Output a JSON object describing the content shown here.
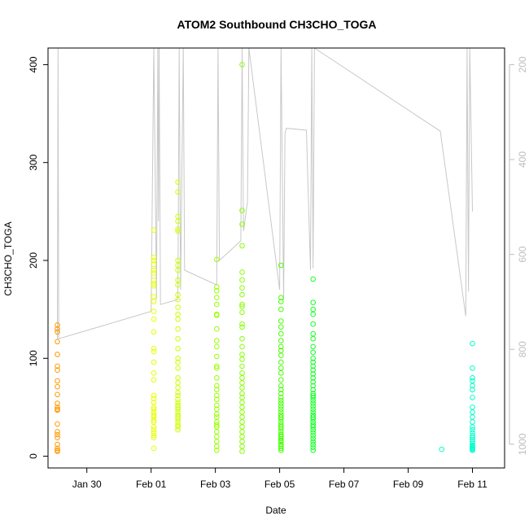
{
  "chart_data": {
    "type": "scatter",
    "title": "ATOM2 Southbound CH3CHO_TOGA",
    "xlabel": "Date",
    "ylabel": "CH3CHO_TOGA",
    "xlim": [
      "2017-01-28T19:00",
      "2017-02-12T00:00"
    ],
    "ylim": [
      -12,
      417
    ],
    "x_ticks": [
      {
        "date": "2017-01-30",
        "label": "Jan 30"
      },
      {
        "date": "2017-02-01",
        "label": "Feb 01"
      },
      {
        "date": "2017-02-03",
        "label": "Feb 03"
      },
      {
        "date": "2017-02-05",
        "label": "Feb 05"
      },
      {
        "date": "2017-02-07",
        "label": "Feb 07"
      },
      {
        "date": "2017-02-09",
        "label": "Feb 09"
      },
      {
        "date": "2017-02-11",
        "label": "Feb 11"
      }
    ],
    "y_ticks": [
      0,
      100,
      200,
      300,
      400
    ],
    "secondary_axis": {
      "side": "right",
      "color": "#bdbdbd",
      "reversed": true,
      "ylim": [
        1050,
        165
      ],
      "ticks": [
        200,
        400,
        600,
        800,
        1000
      ]
    },
    "point_color_scale": "time (orange to cyan)",
    "series": [
      {
        "color": "#ff9900",
        "x": [
          "2017-01-29T02:00",
          "2017-01-29T02:00",
          "2017-01-29T02:00",
          "2017-01-29T02:00",
          "2017-01-29T02:00",
          "2017-01-29T02:00",
          "2017-01-29T02:00",
          "2017-01-29T02:00",
          "2017-01-29T02:00",
          "2017-01-29T02:00",
          "2017-01-29T02:00",
          "2017-01-29T02:00",
          "2017-01-29T02:00",
          "2017-01-29T02:00",
          "2017-01-29T02:00",
          "2017-01-29T02:00",
          "2017-01-29T02:00",
          "2017-01-29T02:00",
          "2017-01-29T02:00",
          "2017-01-29T02:00",
          "2017-01-29T02:00",
          "2017-01-29T02:00"
        ],
        "y": [
          134,
          130,
          127,
          117,
          104,
          92,
          88,
          77,
          71,
          63,
          54,
          50,
          48,
          47,
          33,
          25,
          22,
          19,
          12,
          8,
          6,
          5
        ]
      },
      {
        "color": "#e6ff00",
        "x": [
          "2017-02-01T02:00",
          "2017-02-01T02:00",
          "2017-02-01T02:00",
          "2017-02-01T02:00",
          "2017-02-01T02:00",
          "2017-02-01T02:00",
          "2017-02-01T02:00",
          "2017-02-01T02:00",
          "2017-02-01T02:00",
          "2017-02-01T02:00",
          "2017-02-01T02:00",
          "2017-02-01T02:00",
          "2017-02-01T02:00",
          "2017-02-01T02:00",
          "2017-02-01T02:00",
          "2017-02-01T02:00",
          "2017-02-01T02:00",
          "2017-02-01T02:00",
          "2017-02-01T02:00",
          "2017-02-01T02:00",
          "2017-02-01T02:00",
          "2017-02-01T02:00",
          "2017-02-01T02:00",
          "2017-02-01T02:00",
          "2017-02-01T02:00",
          "2017-02-01T02:00",
          "2017-02-01T02:00",
          "2017-02-01T02:00",
          "2017-02-01T02:00",
          "2017-02-01T02:00",
          "2017-02-01T02:00",
          "2017-02-01T02:00",
          "2017-02-01T02:00",
          "2017-02-01T02:00",
          "2017-02-01T02:00"
        ],
        "y": [
          231,
          203,
          200,
          196,
          190,
          187,
          180,
          176,
          174,
          163,
          158,
          148,
          140,
          127,
          110,
          107,
          96,
          85,
          78,
          62,
          59,
          55,
          50,
          48,
          45,
          42,
          40,
          37,
          35,
          30,
          27,
          24,
          21,
          19,
          8
        ]
      },
      {
        "color": "#ccff00",
        "x": [
          "2017-02-01T20:00",
          "2017-02-01T20:00",
          "2017-02-01T20:00",
          "2017-02-01T20:00",
          "2017-02-01T20:00",
          "2017-02-01T20:00",
          "2017-02-01T20:00",
          "2017-02-01T20:00",
          "2017-02-01T20:00",
          "2017-02-01T20:00",
          "2017-02-01T20:00",
          "2017-02-01T20:00",
          "2017-02-01T20:00",
          "2017-02-01T20:00",
          "2017-02-01T20:00",
          "2017-02-01T20:00",
          "2017-02-01T20:00",
          "2017-02-01T20:00",
          "2017-02-01T20:00",
          "2017-02-01T20:00",
          "2017-02-01T20:00",
          "2017-02-01T20:00",
          "2017-02-01T20:00",
          "2017-02-01T20:00",
          "2017-02-01T20:00",
          "2017-02-01T20:00",
          "2017-02-01T20:00",
          "2017-02-01T20:00",
          "2017-02-01T20:00",
          "2017-02-01T20:00",
          "2017-02-01T20:00",
          "2017-02-01T20:00",
          "2017-02-01T20:00",
          "2017-02-01T20:00",
          "2017-02-01T20:00",
          "2017-02-01T20:00",
          "2017-02-01T20:00",
          "2017-02-01T20:00",
          "2017-02-01T20:00",
          "2017-02-01T20:00"
        ],
        "y": [
          280,
          270,
          245,
          240,
          232,
          230,
          200,
          195,
          190,
          180,
          175,
          165,
          160,
          152,
          145,
          140,
          130,
          120,
          110,
          100,
          96,
          90,
          80,
          75,
          70,
          65,
          62,
          58,
          55,
          52,
          50,
          48,
          45,
          42,
          40,
          38,
          35,
          32,
          30,
          27
        ]
      },
      {
        "color": "#99ff00",
        "x": [
          "2017-02-03T01:00",
          "2017-02-03T01:00",
          "2017-02-03T01:00",
          "2017-02-03T01:00",
          "2017-02-03T01:00",
          "2017-02-03T01:00",
          "2017-02-03T01:00",
          "2017-02-03T01:00",
          "2017-02-03T01:00",
          "2017-02-03T01:00",
          "2017-02-03T01:00",
          "2017-02-03T01:00",
          "2017-02-03T01:00",
          "2017-02-03T01:00",
          "2017-02-03T01:00",
          "2017-02-03T01:00",
          "2017-02-03T01:00",
          "2017-02-03T01:00",
          "2017-02-03T01:00",
          "2017-02-03T01:00",
          "2017-02-03T01:00",
          "2017-02-03T01:00",
          "2017-02-03T01:00",
          "2017-02-03T01:00",
          "2017-02-03T01:00",
          "2017-02-03T01:00",
          "2017-02-03T01:00",
          "2017-02-03T01:00",
          "2017-02-03T01:00",
          "2017-02-03T01:00"
        ],
        "y": [
          201,
          173,
          169,
          162,
          155,
          145,
          144,
          130,
          118,
          112,
          102,
          92,
          90,
          80,
          72,
          68,
          62,
          58,
          52,
          48,
          43,
          40,
          35,
          32,
          30,
          25,
          20,
          15,
          10,
          6
        ]
      },
      {
        "color": "#88ff00",
        "x": [
          "2017-02-03T20:00",
          "2017-02-03T20:00",
          "2017-02-03T20:00",
          "2017-02-03T20:00",
          "2017-02-03T20:00",
          "2017-02-03T20:00",
          "2017-02-03T20:00",
          "2017-02-03T20:00",
          "2017-02-03T20:00",
          "2017-02-03T20:00",
          "2017-02-03T20:00",
          "2017-02-03T20:00",
          "2017-02-03T20:00",
          "2017-02-03T20:00",
          "2017-02-03T20:00",
          "2017-02-03T20:00",
          "2017-02-03T20:00",
          "2017-02-03T20:00",
          "2017-02-03T20:00",
          "2017-02-03T20:00",
          "2017-02-03T20:00",
          "2017-02-03T20:00",
          "2017-02-03T20:00",
          "2017-02-03T20:00",
          "2017-02-03T20:00",
          "2017-02-03T20:00",
          "2017-02-03T20:00",
          "2017-02-03T20:00",
          "2017-02-03T20:00",
          "2017-02-03T20:00",
          "2017-02-03T20:00",
          "2017-02-03T20:00",
          "2017-02-03T20:00",
          "2017-02-03T20:00",
          "2017-02-03T20:00"
        ],
        "y": [
          400,
          251,
          237,
          215,
          188,
          180,
          172,
          165,
          155,
          153,
          147,
          135,
          132,
          120,
          112,
          104,
          99,
          92,
          85,
          80,
          75,
          70,
          64,
          60,
          55,
          50,
          45,
          40,
          35,
          30,
          25,
          20,
          15,
          10,
          5
        ]
      },
      {
        "color": "#44ff00",
        "x": [
          "2017-02-05T01:00",
          "2017-02-05T01:00",
          "2017-02-05T01:00",
          "2017-02-05T01:00",
          "2017-02-05T01:00",
          "2017-02-05T01:00",
          "2017-02-05T01:00",
          "2017-02-05T01:00",
          "2017-02-05T01:00",
          "2017-02-05T01:00",
          "2017-02-05T01:00",
          "2017-02-05T01:00",
          "2017-02-05T01:00",
          "2017-02-05T01:00",
          "2017-02-05T01:00",
          "2017-02-05T01:00",
          "2017-02-05T01:00",
          "2017-02-05T01:00",
          "2017-02-05T01:00",
          "2017-02-05T01:00",
          "2017-02-05T01:00",
          "2017-02-05T01:00",
          "2017-02-05T01:00",
          "2017-02-05T01:00",
          "2017-02-05T01:00",
          "2017-02-05T01:00",
          "2017-02-05T01:00",
          "2017-02-05T01:00",
          "2017-02-05T01:00",
          "2017-02-05T01:00",
          "2017-02-05T01:00",
          "2017-02-05T01:00",
          "2017-02-05T01:00",
          "2017-02-05T01:00",
          "2017-02-05T01:00",
          "2017-02-05T01:00",
          "2017-02-05T01:00",
          "2017-02-05T01:00",
          "2017-02-05T01:00",
          "2017-02-05T01:00",
          "2017-02-05T01:00",
          "2017-02-05T01:00"
        ],
        "y": [
          195,
          162,
          158,
          150,
          138,
          132,
          125,
          118,
          112,
          108,
          103,
          96,
          90,
          85,
          78,
          72,
          68,
          64,
          60,
          57,
          54,
          51,
          48,
          45,
          42,
          40,
          38,
          35,
          32,
          30,
          28,
          25,
          22,
          20,
          18,
          15,
          12,
          10,
          8,
          6,
          22,
          16
        ]
      },
      {
        "color": "#11ff22",
        "x": [
          "2017-02-06T01:00",
          "2017-02-06T01:00",
          "2017-02-06T01:00",
          "2017-02-06T01:00",
          "2017-02-06T01:00",
          "2017-02-06T01:00",
          "2017-02-06T01:00",
          "2017-02-06T01:00",
          "2017-02-06T01:00",
          "2017-02-06T01:00",
          "2017-02-06T01:00",
          "2017-02-06T01:00",
          "2017-02-06T01:00",
          "2017-02-06T01:00",
          "2017-02-06T01:00",
          "2017-02-06T01:00",
          "2017-02-06T01:00",
          "2017-02-06T01:00",
          "2017-02-06T01:00",
          "2017-02-06T01:00",
          "2017-02-06T01:00",
          "2017-02-06T01:00",
          "2017-02-06T01:00",
          "2017-02-06T01:00",
          "2017-02-06T01:00",
          "2017-02-06T01:00",
          "2017-02-06T01:00",
          "2017-02-06T01:00",
          "2017-02-06T01:00",
          "2017-02-06T01:00",
          "2017-02-06T01:00",
          "2017-02-06T01:00",
          "2017-02-06T01:00",
          "2017-02-06T01:00",
          "2017-02-06T01:00",
          "2017-02-06T01:00",
          "2017-02-06T01:00",
          "2017-02-06T01:00",
          "2017-02-06T01:00",
          "2017-02-06T01:00"
        ],
        "y": [
          181,
          157,
          150,
          145,
          135,
          125,
          120,
          112,
          106,
          100,
          96,
          92,
          88,
          84,
          80,
          76,
          72,
          68,
          64,
          62,
          60,
          57,
          54,
          51,
          48,
          45,
          42,
          40,
          38,
          35,
          32,
          30,
          27,
          24,
          21,
          18,
          15,
          12,
          9,
          6
        ]
      },
      {
        "color": "#00ffcc",
        "x": [
          "2017-02-10T01:00",
          "2017-02-11T00:00",
          "2017-02-11T00:00",
          "2017-02-11T00:00",
          "2017-02-11T00:00",
          "2017-02-11T00:00",
          "2017-02-11T00:00",
          "2017-02-11T00:00",
          "2017-02-11T00:00",
          "2017-02-11T00:00",
          "2017-02-11T00:00",
          "2017-02-11T00:00",
          "2017-02-11T00:00",
          "2017-02-11T00:00",
          "2017-02-11T00:00",
          "2017-02-11T00:00",
          "2017-02-11T00:00",
          "2017-02-11T00:00",
          "2017-02-11T00:00",
          "2017-02-11T00:00",
          "2017-02-11T00:00",
          "2017-02-11T00:00",
          "2017-02-11T00:00",
          "2017-02-11T00:00",
          "2017-02-11T00:00",
          "2017-02-11T00:00"
        ],
        "y": [
          7,
          115,
          90,
          80,
          77,
          72,
          68,
          60,
          50,
          45,
          40,
          35,
          30,
          27,
          24,
          21,
          19,
          17,
          15,
          13,
          11,
          10,
          9,
          8,
          7,
          6
        ]
      }
    ],
    "altitude_trace": {
      "color": "#c8c8c8",
      "x": [
        "2017-01-29T02:00",
        "2017-01-29T02:30",
        "2017-01-29T03:00",
        "2017-02-01T00:00",
        "2017-02-01T02:00",
        "2017-02-01T04:00",
        "2017-02-01T05:00",
        "2017-02-01T05:30",
        "2017-02-01T06:00",
        "2017-02-01T07:00",
        "2017-02-01T20:00",
        "2017-02-01T21:00",
        "2017-02-01T22:00",
        "2017-02-02T00:00",
        "2017-02-02T01:00",
        "2017-02-03T01:00",
        "2017-02-03T02:00",
        "2017-02-03T03:00",
        "2017-02-03T19:00",
        "2017-02-03T20:00",
        "2017-02-03T21:00",
        "2017-02-04T00:00",
        "2017-02-04T01:00",
        "2017-02-05T00:00",
        "2017-02-05T01:00",
        "2017-02-05T03:00",
        "2017-02-05T04:00",
        "2017-02-05T05:00",
        "2017-02-05T20:00",
        "2017-02-05T23:00",
        "2017-02-06T00:00",
        "2017-02-06T01:00",
        "2017-02-06T02:00",
        "2017-02-10T00:00",
        "2017-02-10T19:00",
        "2017-02-10T20:00",
        "2017-02-10T21:00",
        "2017-02-10T22:00",
        "2017-02-11T00:00"
      ],
      "y": [
        120,
        417,
        120,
        148,
        417,
        160,
        417,
        240,
        417,
        155,
        160,
        417,
        170,
        417,
        190,
        175,
        417,
        200,
        220,
        417,
        230,
        260,
        417,
        170,
        417,
        160,
        330,
        335,
        333,
        190,
        417,
        192,
        417,
        332,
        143,
        417,
        168,
        417,
        250
      ]
    }
  }
}
